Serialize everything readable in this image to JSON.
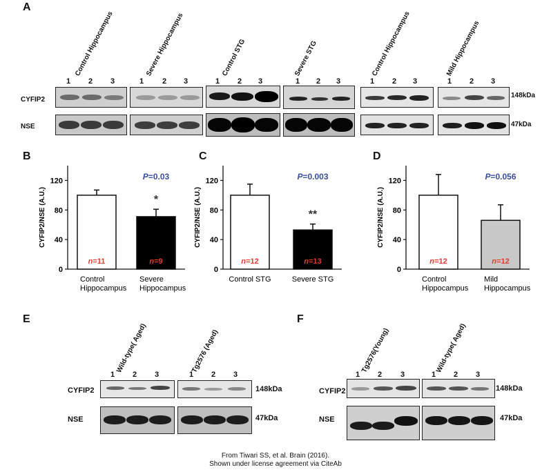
{
  "panels": {
    "A": "A",
    "B": "B",
    "C": "C",
    "D": "D",
    "E": "E",
    "F": "F"
  },
  "panel_a": {
    "groups": [
      {
        "label": "Control Hippocampus",
        "lanes": [
          "1",
          "2",
          "3"
        ]
      },
      {
        "label": "Severe Hippocampus",
        "lanes": [
          "1",
          "2",
          "3"
        ]
      },
      {
        "label": "Control STG",
        "lanes": [
          "1",
          "2",
          "3"
        ]
      },
      {
        "label": "Severe STG",
        "lanes": [
          "1",
          "2",
          "3"
        ]
      },
      {
        "label": "Control Hippocampus",
        "lanes": [
          "1",
          "2",
          "3"
        ]
      },
      {
        "label": "Mild Hippocampus",
        "lanes": [
          "1",
          "2",
          "3"
        ]
      }
    ],
    "rows": [
      {
        "label": "CYFIP2",
        "kda": "148kDa"
      },
      {
        "label": "NSE",
        "kda": "47kDa"
      }
    ]
  },
  "chart_data": [
    {
      "type": "bar",
      "panel": "B",
      "categories": [
        "Control\nHippocampus",
        "Severe\nHippocampus"
      ],
      "values": [
        100,
        71
      ],
      "errors": [
        7,
        10
      ],
      "colors": [
        "#ffffff",
        "#000000"
      ],
      "n_labels": [
        "n=11",
        "n=9"
      ],
      "n_prefix": "n",
      "n_values": [
        "=11",
        "=9"
      ],
      "ylabel": "CYFIP2/NSE (A.U.)",
      "ylim": [
        0,
        140
      ],
      "yticks": [
        "0",
        "40",
        "80",
        "120"
      ],
      "p_label": "P",
      "p_value": "=0.03",
      "significance": "*"
    },
    {
      "type": "bar",
      "panel": "C",
      "categories": [
        "Control STG",
        "Severe STG"
      ],
      "values": [
        100,
        53
      ],
      "errors": [
        15,
        8
      ],
      "colors": [
        "#ffffff",
        "#000000"
      ],
      "n_labels": [
        "n=12",
        "n=13"
      ],
      "n_prefix": "n",
      "n_values": [
        "=12",
        "=13"
      ],
      "ylabel": "CYFIP2/NSE (A.U.)",
      "ylim": [
        0,
        140
      ],
      "yticks": [
        "0",
        "40",
        "80",
        "120"
      ],
      "p_label": "P",
      "p_value": "=0.003",
      "significance": "**"
    },
    {
      "type": "bar",
      "panel": "D",
      "categories": [
        "Control\nHippocampus",
        "Mild\nHippocampus"
      ],
      "values": [
        100,
        66
      ],
      "errors": [
        28,
        21
      ],
      "colors": [
        "#ffffff",
        "#c8c8c8"
      ],
      "n_labels": [
        "n=12",
        "n=12"
      ],
      "n_prefix": "n",
      "n_values": [
        "=12",
        "=12"
      ],
      "ylabel": "CYFIP2/NSE (A.U.)",
      "ylim": [
        0,
        140
      ],
      "yticks": [
        "0",
        "40",
        "80",
        "120"
      ],
      "p_label": "P",
      "p_value": "=0.056",
      "significance": ""
    }
  ],
  "panel_e": {
    "groups": [
      {
        "label": "Wild-type( Aged)",
        "lanes": [
          "1",
          "2",
          "3"
        ]
      },
      {
        "label": "Tg2576 (Aged)",
        "lanes": [
          "1",
          "2",
          "3"
        ]
      }
    ],
    "rows": [
      {
        "label": "CYFIP2",
        "kda": "148kDa"
      },
      {
        "label": "NSE",
        "kda": "47kDa"
      }
    ]
  },
  "panel_f": {
    "groups": [
      {
        "label": "Tg2576(Young)",
        "lanes": [
          "1",
          "2",
          "3"
        ]
      },
      {
        "label": "Wild-type( Aged)",
        "lanes": [
          "1",
          "2",
          "3"
        ]
      }
    ],
    "rows": [
      {
        "label": "CYFIP2",
        "kda": "148kDa"
      },
      {
        "label": "NSE",
        "kda": "47kDa"
      }
    ]
  },
  "footer": {
    "line1": "From Tiwari SS, et al. Brain (2016).",
    "line2": "Shown under license agreement via CiteAb"
  }
}
